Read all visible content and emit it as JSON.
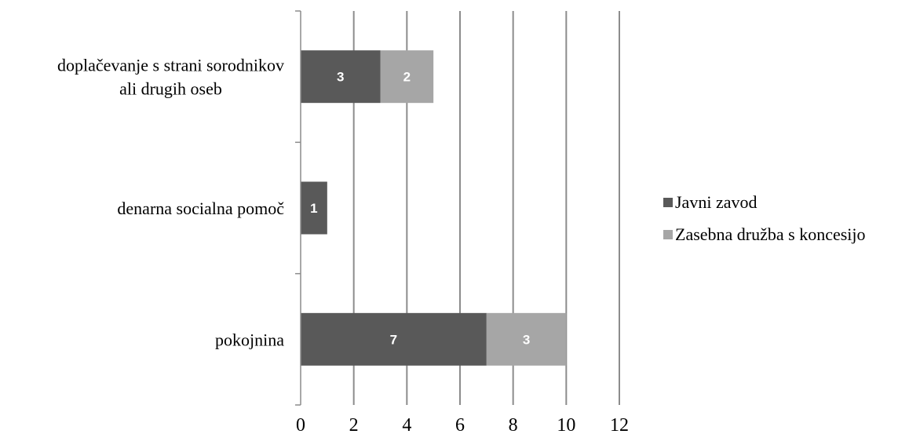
{
  "chart_data": {
    "type": "bar",
    "orientation": "horizontal",
    "stacked": true,
    "categories": [
      [
        "doplačevanje s strani sorodnikov",
        "ali drugih oseb"
      ],
      [
        "denarna socialna pomoč"
      ],
      [
        "pokojnina"
      ]
    ],
    "series": [
      {
        "name": "Javni zavod",
        "color": "#595959",
        "values": [
          3,
          1,
          7
        ]
      },
      {
        "name": "Zasebna družba s koncesijo",
        "color": "#a6a6a6",
        "values": [
          2,
          null,
          3
        ]
      }
    ],
    "xlim": [
      0,
      12
    ],
    "xticks": [
      "0",
      "2",
      "4",
      "6",
      "8",
      "10",
      "12"
    ],
    "grid": true,
    "legend_position": "right",
    "data_labels": true
  }
}
